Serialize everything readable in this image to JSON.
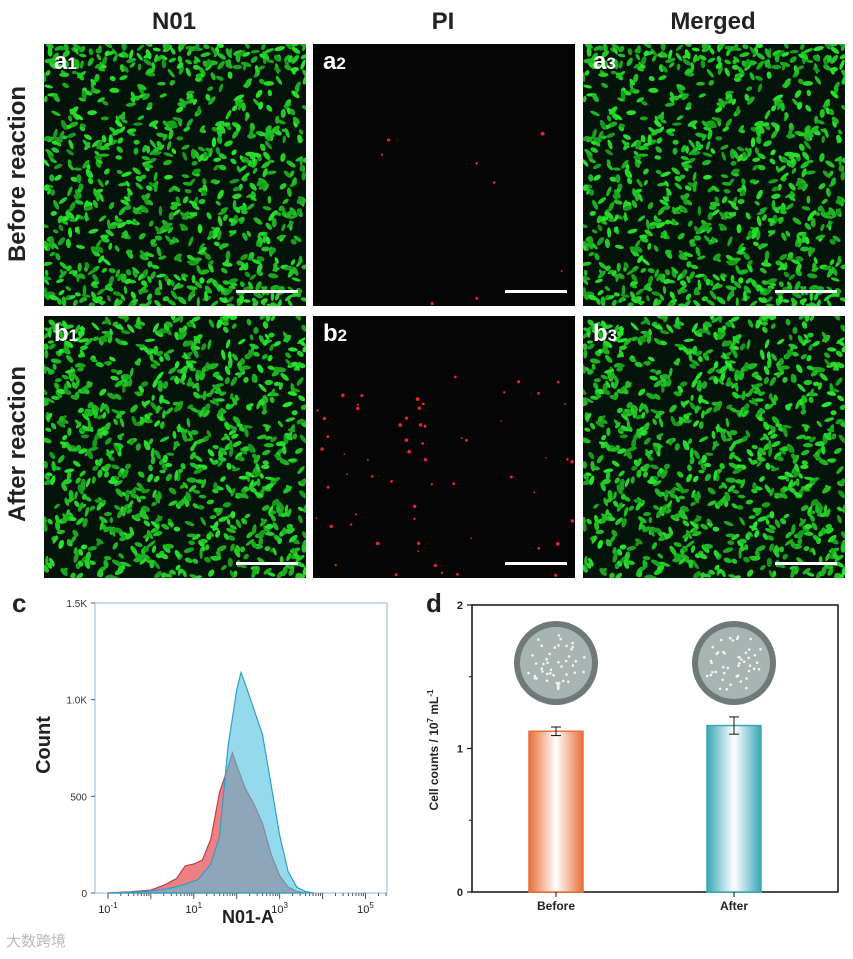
{
  "columns": [
    "N01",
    "PI",
    "Merged"
  ],
  "rows": [
    "Before reaction",
    "After reaction"
  ],
  "panels": {
    "a1": {
      "letter": "a",
      "num": "1"
    },
    "a2": {
      "letter": "a",
      "num": "2"
    },
    "a3": {
      "letter": "a",
      "num": "3"
    },
    "b1": {
      "letter": "b",
      "num": "1"
    },
    "b2": {
      "letter": "b",
      "num": "2"
    },
    "b3": {
      "letter": "b",
      "num": "3"
    }
  },
  "colors": {
    "n01_green": "#3ad12f",
    "pi_red": "#e8252a",
    "hist_red": "#e8545a",
    "hist_blue": "#4fbfe0",
    "bar_orange": "#e8703a",
    "bar_teal": "#3aa7b8"
  },
  "panel_c": {
    "letter": "c"
  },
  "panel_d": {
    "letter": "d"
  },
  "watermark": "大数跨境",
  "chart_data": [
    {
      "type": "area",
      "id": "c",
      "xlabel": "N01-A",
      "ylabel": "Count",
      "x_scale": "log",
      "xticks": [
        "10^-1",
        "10^1",
        "10^3",
        "10^5"
      ],
      "yticks": [
        "0",
        "500",
        "1.0K",
        "1.5K"
      ],
      "ylim": [
        0,
        1500
      ],
      "series": [
        {
          "color": "#e8545a",
          "x": [
            -1.0,
            -0.5,
            0.0,
            0.3,
            0.6,
            0.8,
            1.0,
            1.2,
            1.4,
            1.6,
            1.8,
            1.9,
            2.0,
            2.2,
            2.4,
            2.6,
            2.8,
            3.0,
            3.2,
            3.4,
            3.6
          ],
          "y": [
            0,
            6,
            15,
            40,
            75,
            140,
            150,
            170,
            280,
            520,
            650,
            725,
            660,
            540,
            460,
            360,
            200,
            90,
            30,
            8,
            0
          ]
        },
        {
          "color": "#4fbfe0",
          "x": [
            -1.0,
            -0.5,
            0.0,
            0.4,
            0.8,
            1.1,
            1.4,
            1.6,
            1.8,
            2.0,
            2.1,
            2.2,
            2.4,
            2.6,
            2.8,
            3.0,
            3.2,
            3.4,
            3.6,
            3.8
          ],
          "y": [
            0,
            4,
            10,
            22,
            45,
            70,
            150,
            290,
            760,
            1050,
            1140,
            1080,
            950,
            820,
            560,
            300,
            110,
            30,
            8,
            0
          ]
        }
      ]
    },
    {
      "type": "bar",
      "id": "d",
      "ylabel": "Cell counts / 10^7 mL^-1",
      "ylim": [
        0,
        2
      ],
      "yticks": [
        "0",
        "1",
        "2"
      ],
      "categories": [
        "Before",
        "After"
      ],
      "values": [
        1.12,
        1.16
      ],
      "errors": [
        0.03,
        0.06
      ]
    }
  ]
}
